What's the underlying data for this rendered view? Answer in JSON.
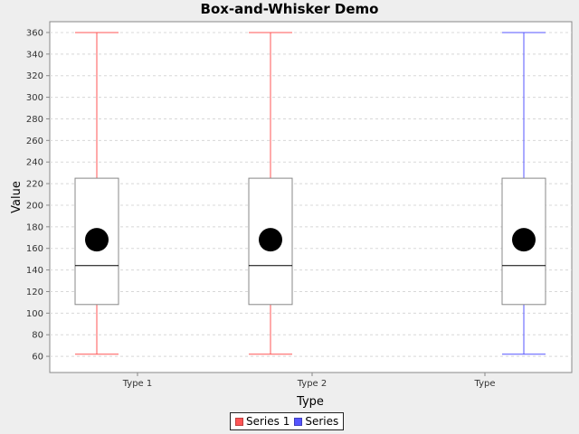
{
  "chart_data": {
    "type": "box",
    "title": "Box-and-Whisker Demo",
    "xlabel": "Type",
    "ylabel": "Value",
    "ylim": [
      45,
      370
    ],
    "yticks": [
      60,
      80,
      100,
      120,
      140,
      160,
      180,
      200,
      220,
      240,
      260,
      280,
      300,
      320,
      340,
      360
    ],
    "categories": [
      "Type 1",
      "Type 2",
      "Type"
    ],
    "grid": true,
    "legend_position": "bottom",
    "series": [
      {
        "name": "Series 1",
        "color": "#ff5555",
        "boxes": [
          {
            "category": "Type 1",
            "min": 62,
            "q1": 108,
            "median": 144,
            "q3": 225,
            "max": 360,
            "mean": 168
          },
          {
            "category": "Type 2",
            "min": 62,
            "q1": 108,
            "median": 144,
            "q3": 225,
            "max": 360,
            "mean": 168
          }
        ]
      },
      {
        "name": "Series",
        "color": "#5555ff",
        "boxes": [
          {
            "category": "Type",
            "min": 62,
            "q1": 108,
            "median": 144,
            "q3": 225,
            "max": 360,
            "mean": 168
          }
        ]
      }
    ]
  }
}
